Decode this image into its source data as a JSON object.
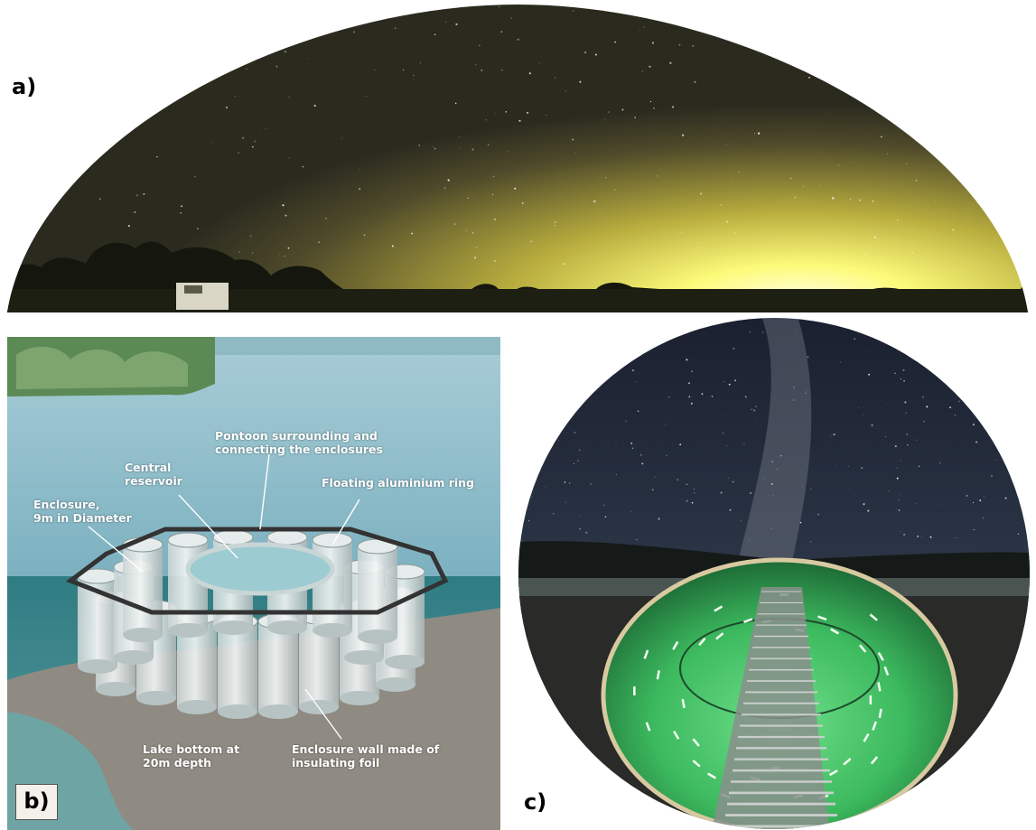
{
  "panel_a": {
    "label": "a)"
  },
  "panel_b": {
    "label": "b)",
    "callouts": {
      "pontoon": "Pontoon surrounding and\nconnecting the enclosures",
      "central_reservoir": "Central\nreservoir",
      "floating_ring": "Floating aluminium ring",
      "enclosure": "Enclosure,\n9m in Diameter",
      "lake_bottom": "Lake bottom at\n20m depth",
      "enclosure_wall": "Enclosure wall made of\ninsulating foil"
    }
  },
  "panel_c": {
    "label": "c)"
  },
  "colors": {
    "sky_dark": "#2b2a1a",
    "sky_glow": "#fffb9a",
    "lake_water": "#7fb6c2",
    "enclosure_water": "#3fbf6a",
    "night_sky": "#1e2433"
  }
}
